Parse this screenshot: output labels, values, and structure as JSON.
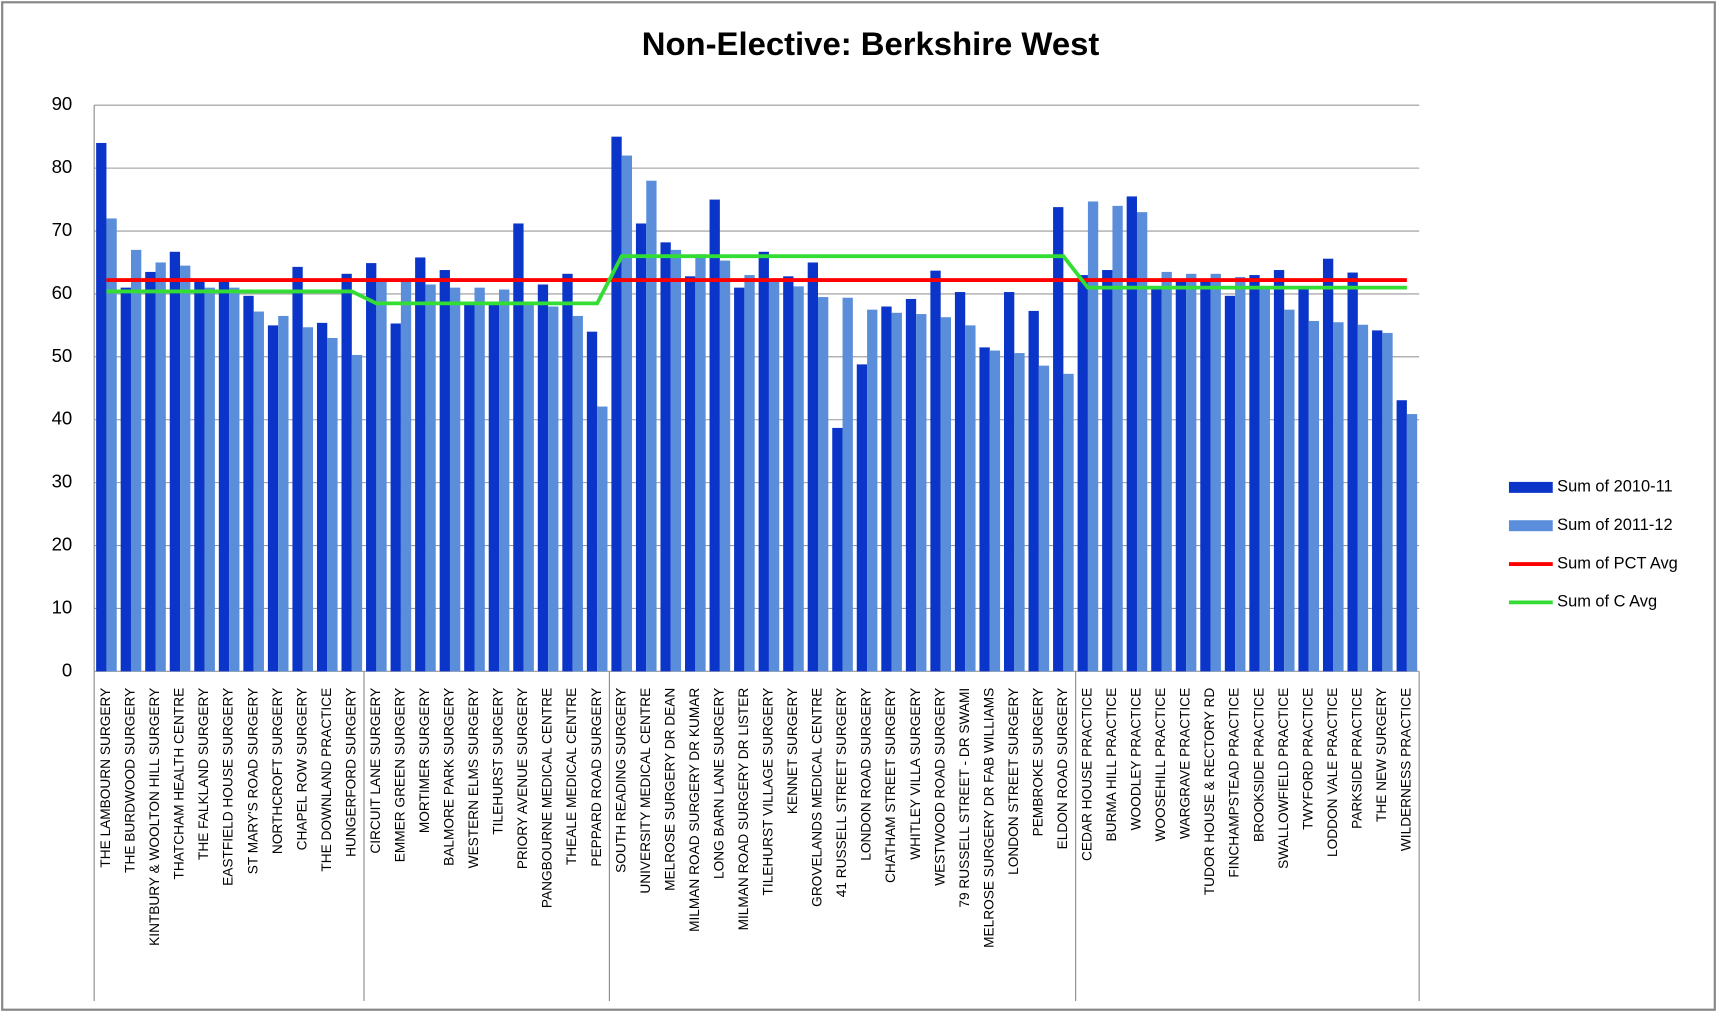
{
  "chart_data": {
    "type": "bar",
    "title": "Non-Elective:  Berkshire  West",
    "categories": [
      "THE LAMBOURN SURGERY",
      "THE BURDWOOD SURGERY",
      "KINTBURY & WOOLTON HILL SURGERY",
      "THATCHAM HEALTH CENTRE",
      "THE FALKLAND SURGERY",
      "EASTFIELD HOUSE SURGERY",
      "ST MARY'S ROAD SURGERY",
      "NORTHCROFT SURGERY",
      "CHAPEL ROW SURGERY",
      "THE DOWNLAND PRACTICE",
      "HUNGERFORD SURGERY",
      "CIRCUIT LANE SURGERY",
      "EMMER GREEN SURGERY",
      "MORTIMER SURGERY",
      "BALMORE PARK SURGERY",
      "WESTERN ELMS SURGERY",
      "TILEHURST SURGERY",
      "PRIORY AVENUE SURGERY",
      "PANGBOURNE MEDICAL CENTRE",
      "THEALE MEDICAL CENTRE",
      "PEPPARD ROAD SURGERY",
      "SOUTH READING SURGERY",
      "UNIVERSITY MEDICAL CENTRE",
      "MELROSE SURGERY DR DEAN",
      "MILMAN ROAD SURGERY DR KUMAR",
      "LONG BARN LANE SURGERY",
      "MILMAN ROAD SURGERY DR LISTER",
      "TILEHURST VILLAGE SURGERY",
      "KENNET SURGERY",
      "GROVELANDS MEDICAL CENTRE",
      "41 RUSSELL STREET SURGERY",
      "LONDON ROAD SURGERY",
      "CHATHAM STREET SURGERY",
      "WHITLEY VILLA SURGERY",
      "WESTWOOD ROAD SURGERY",
      "79 RUSSELL STREET - DR SWAMI",
      "MELROSE SURGERY DR FAB WILLIAMS",
      "LONDON STREET SURGERY",
      "PEMBROKE SURGERY",
      "ELDON ROAD SURGERY",
      "CEDAR HOUSE PRACTICE",
      "BURMA HILL PRACTICE",
      "WOODLEY PRACTICE",
      "WOOSEHILL PRACTICE",
      "WARGRAVE PRACTICE",
      "TUDOR HOUSE & RECTORY RD",
      "FINCHAMPSTEAD PRACTICE",
      "BROOKSIDE PRACTICE",
      "SWALLOWFIELD PRACTICE",
      "TWYFORD PRACTICE",
      "LODDON VALE PRACTICE",
      "PARKSIDE PRACTICE",
      "THE NEW SURGERY",
      "WILDERNESS PRACTICE"
    ],
    "series": [
      {
        "name": "Sum of 2010-11",
        "type": "bar",
        "color": "#0a35c8",
        "values": [
          84,
          61,
          63.5,
          66.7,
          62,
          62,
          59.7,
          55,
          64.3,
          55.4,
          63.2,
          64.9,
          55.3,
          65.8,
          63.8,
          58.5,
          58.5,
          71.2,
          61.5,
          63.2,
          54,
          85,
          71.2,
          68.2,
          62.8,
          75,
          61,
          66.7,
          62.8,
          65,
          38.7,
          48.8,
          58,
          59.2,
          63.7,
          60.3,
          51.5,
          60.3,
          57.3,
          73.8,
          63,
          63.8,
          75.5,
          61,
          62,
          62,
          59.7,
          63,
          63.8,
          61,
          65.6,
          63.4,
          54.2,
          43.1
        ]
      },
      {
        "name": "Sum of 2011-12",
        "type": "bar",
        "color": "#5a8edb",
        "values": [
          72,
          67,
          65,
          64.5,
          61,
          61,
          57.2,
          56.5,
          54.7,
          53,
          50.3,
          62,
          62,
          61.5,
          61,
          61,
          60.7,
          58.5,
          58,
          56.5,
          42.1,
          82,
          78,
          67,
          66.3,
          65.3,
          63,
          62,
          61.2,
          59.5,
          59.4,
          57.5,
          57,
          56.8,
          56.3,
          55,
          51,
          50.6,
          48.6,
          47.3,
          74.7,
          74,
          73,
          63.5,
          63.2,
          63.2,
          62.7,
          61,
          57.5,
          55.7,
          55.5,
          55.1,
          53.8,
          40.9
        ]
      },
      {
        "name": "Sum of PCT Avg",
        "type": "line",
        "color": "#ff0000",
        "values": [
          62.2,
          62.2,
          62.2,
          62.2,
          62.2,
          62.2,
          62.2,
          62.2,
          62.2,
          62.2,
          62.2,
          62.2,
          62.2,
          62.2,
          62.2,
          62.2,
          62.2,
          62.2,
          62.2,
          62.2,
          62.2,
          62.2,
          62.2,
          62.2,
          62.2,
          62.2,
          62.2,
          62.2,
          62.2,
          62.2,
          62.2,
          62.2,
          62.2,
          62.2,
          62.2,
          62.2,
          62.2,
          62.2,
          62.2,
          62.2,
          62.2,
          62.2,
          62.2,
          62.2,
          62.2,
          62.2,
          62.2,
          62.2,
          62.2,
          62.2,
          62.2,
          62.2,
          62.2,
          62.2
        ]
      },
      {
        "name": "Sum of C Avg",
        "type": "line",
        "color": "#33dd33",
        "values": [
          60.4,
          60.4,
          60.4,
          60.4,
          60.4,
          60.4,
          60.4,
          60.4,
          60.4,
          60.4,
          60.4,
          58.5,
          58.5,
          58.5,
          58.5,
          58.5,
          58.5,
          58.5,
          58.5,
          58.5,
          58.5,
          66,
          66,
          66,
          66,
          66,
          66,
          66,
          66,
          66,
          66,
          66,
          66,
          66,
          66,
          66,
          66,
          66,
          66,
          66,
          61,
          61,
          61,
          61,
          61,
          61,
          61,
          61,
          61,
          61,
          61,
          61,
          61,
          61
        ]
      }
    ],
    "ylim": [
      0,
      90
    ],
    "yticks": [
      0,
      10,
      20,
      30,
      40,
      50,
      60,
      70,
      80,
      90
    ],
    "grid": true,
    "legend": "right"
  }
}
